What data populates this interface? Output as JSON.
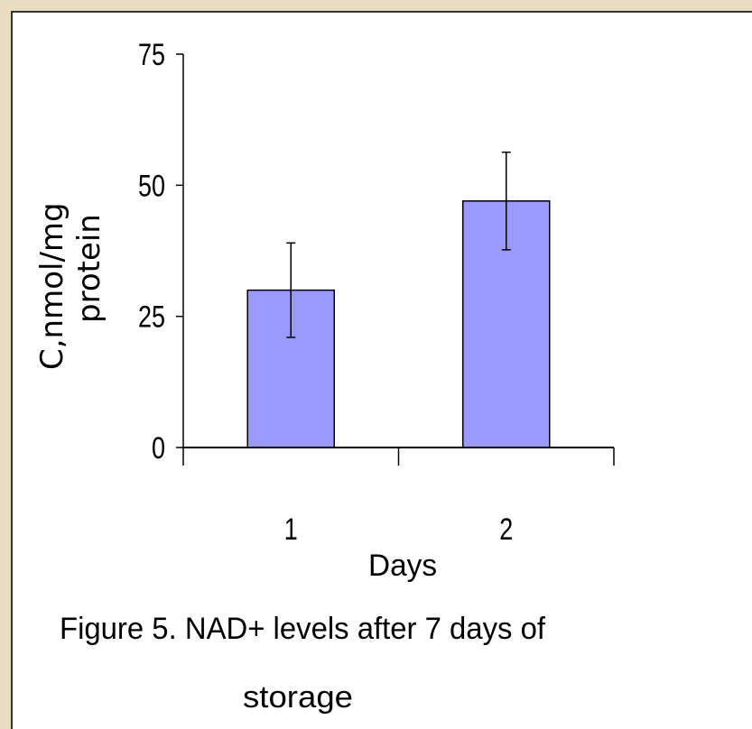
{
  "chart_data": {
    "type": "bar",
    "categories": [
      "1",
      "2"
    ],
    "values": [
      30,
      47
    ],
    "errors": [
      9,
      9.3
    ],
    "ylim": [
      0,
      75
    ],
    "yticks": [
      "0",
      "25",
      "50",
      "75"
    ],
    "xlabel": "Days",
    "ylabel": "C,nmol/mg protein",
    "ylabel_lines": [
      "C,nmol/mg",
      "protein"
    ],
    "grid": false,
    "legend": "none",
    "bar_color": "#9999ff",
    "bar_edge_color": "#000000"
  },
  "caption": {
    "line1": "Figure 5. NAD+ levels after 7 days of",
    "line2": "storage"
  },
  "colors": {
    "background": "#e9ddbf",
    "panel": "#ffffff"
  }
}
